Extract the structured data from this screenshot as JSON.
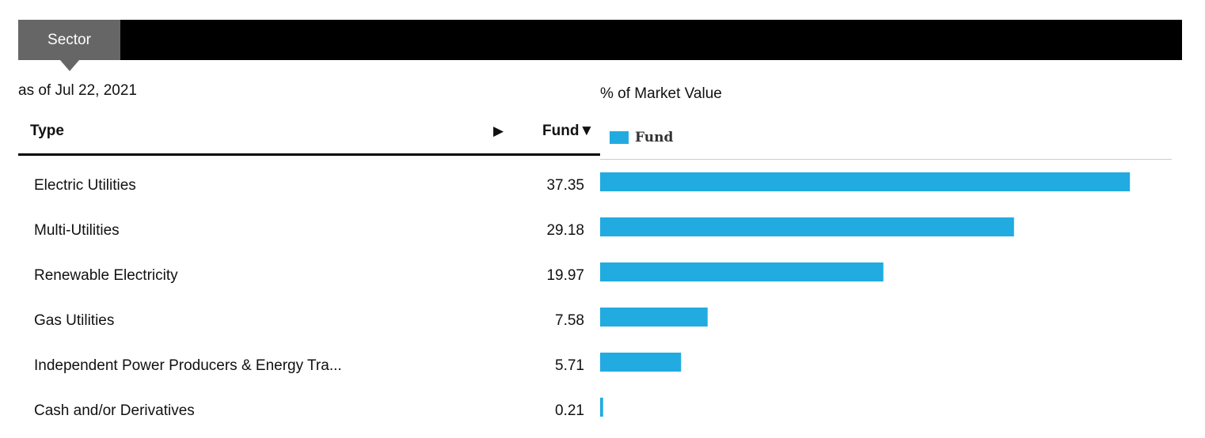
{
  "tab": {
    "label": "Sector"
  },
  "as_of": "as of Jul 22, 2021",
  "table": {
    "col_type": "Type",
    "col_fund": "Fund",
    "expand_icon": "triangle-right-icon",
    "sort_icon": "triangle-down-icon"
  },
  "chart_data": {
    "type": "bar",
    "orientation": "horizontal",
    "title": "% of Market Value",
    "legend": [
      "Fund"
    ],
    "legend_placement": "top-left",
    "color": "#22abe0",
    "categories": [
      "Electric Utilities",
      "Multi-Utilities",
      "Renewable Electricity",
      "Gas Utilities",
      "Independent Power Producers & Energy Tra...",
      "Cash and/or Derivatives"
    ],
    "values": [
      37.35,
      29.18,
      19.97,
      7.58,
      5.71,
      0.21
    ],
    "value_labels": [
      "37.35",
      "29.18",
      "19.97",
      "7.58",
      "5.71",
      "0.21"
    ],
    "xlim": [
      0,
      40.3
    ]
  }
}
